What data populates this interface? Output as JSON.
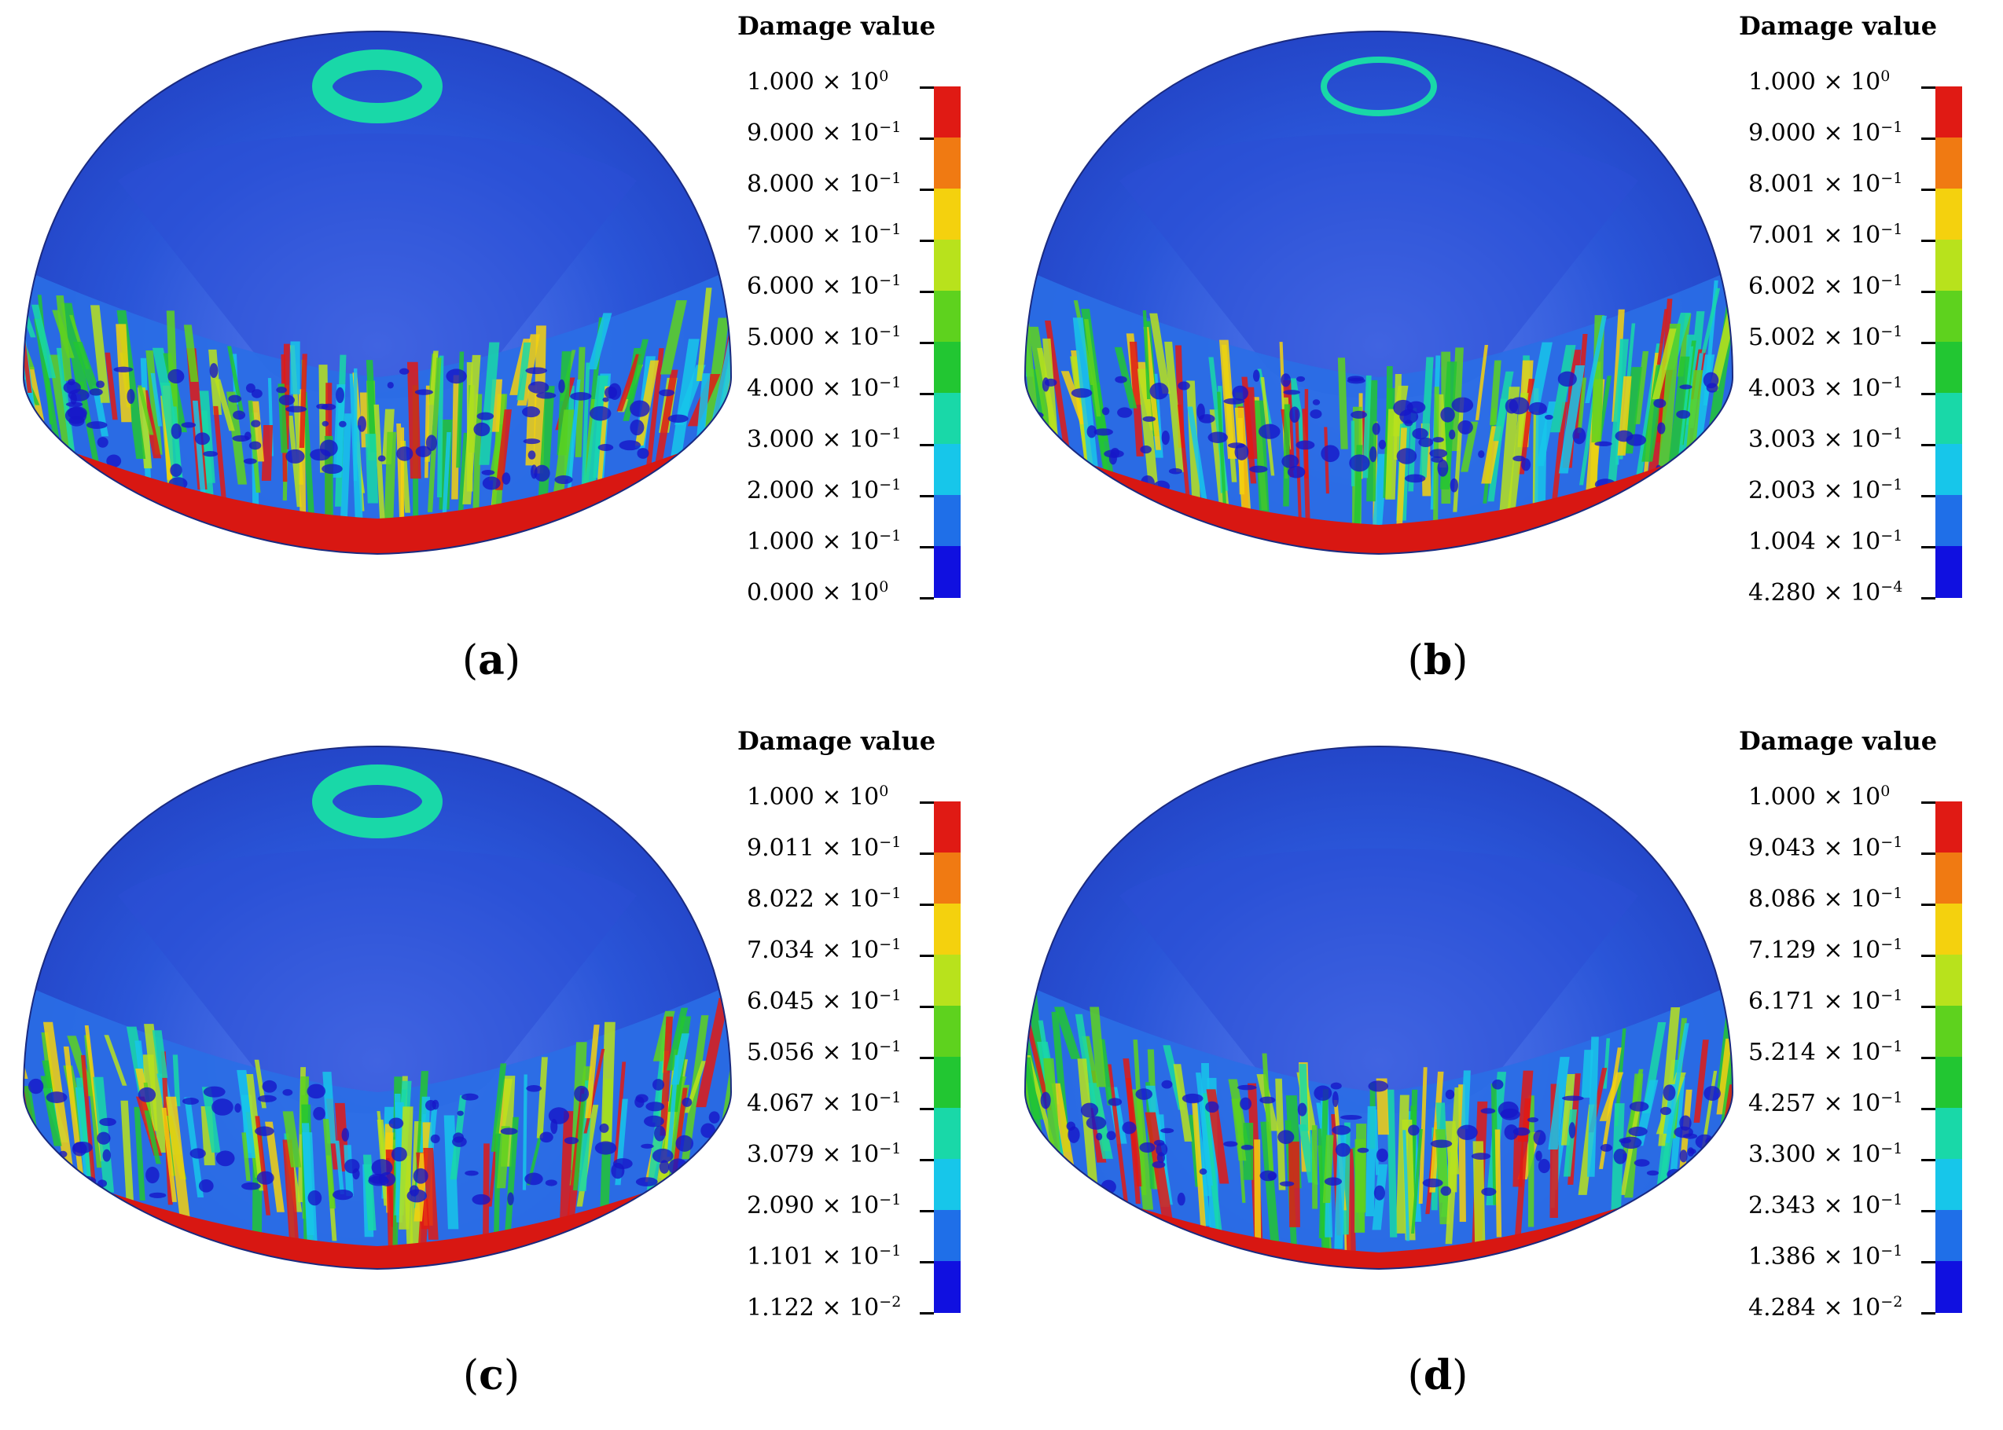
{
  "colors": {
    "scale": [
      "#1010e0",
      "#1f6fe8",
      "#17c6ea",
      "#19d8a8",
      "#22c632",
      "#5ed21e",
      "#b8e21c",
      "#f4d10e",
      "#f07a12",
      "#e01a14"
    ],
    "dome_top": "#1a2fb0",
    "dome_mid": "#2a55d8",
    "dome_band_red": "#d81712",
    "dome_band_green": "#3fc23a"
  },
  "panels": [
    {
      "caption": "a",
      "legend_title": "Damage value",
      "labels": [
        {
          "m": "1.000",
          "e": "0"
        },
        {
          "m": "9.000",
          "e": "−1"
        },
        {
          "m": "8.000",
          "e": "−1"
        },
        {
          "m": "7.000",
          "e": "−1"
        },
        {
          "m": "6.000",
          "e": "−1"
        },
        {
          "m": "5.000",
          "e": "−1"
        },
        {
          "m": "4.000",
          "e": "−1"
        },
        {
          "m": "3.000",
          "e": "−1"
        },
        {
          "m": "2.000",
          "e": "−1"
        },
        {
          "m": "1.000",
          "e": "−1"
        },
        {
          "m": "0.000",
          "e": "0"
        }
      ],
      "ring": true
    },
    {
      "caption": "b",
      "legend_title": "Damage value",
      "labels": [
        {
          "m": "1.000",
          "e": "0"
        },
        {
          "m": "9.000",
          "e": "−1"
        },
        {
          "m": "8.001",
          "e": "−1"
        },
        {
          "m": "7.001",
          "e": "−1"
        },
        {
          "m": "6.002",
          "e": "−1"
        },
        {
          "m": "5.002",
          "e": "−1"
        },
        {
          "m": "4.003",
          "e": "−1"
        },
        {
          "m": "3.003",
          "e": "−1"
        },
        {
          "m": "2.003",
          "e": "−1"
        },
        {
          "m": "1.004",
          "e": "−1"
        },
        {
          "m": "4.280",
          "e": "−4"
        }
      ],
      "ring": true
    },
    {
      "caption": "c",
      "legend_title": "Damage value",
      "labels": [
        {
          "m": "1.000",
          "e": "0"
        },
        {
          "m": "9.011",
          "e": "−1"
        },
        {
          "m": "8.022",
          "e": "−1"
        },
        {
          "m": "7.034",
          "e": "−1"
        },
        {
          "m": "6.045",
          "e": "−1"
        },
        {
          "m": "5.056",
          "e": "−1"
        },
        {
          "m": "4.067",
          "e": "−1"
        },
        {
          "m": "3.079",
          "e": "−1"
        },
        {
          "m": "2.090",
          "e": "−1"
        },
        {
          "m": "1.101",
          "e": "−1"
        },
        {
          "m": "1.122",
          "e": "−2"
        }
      ],
      "ring": true
    },
    {
      "caption": "d",
      "legend_title": "Damage value",
      "labels": [
        {
          "m": "1.000",
          "e": "0"
        },
        {
          "m": "9.043",
          "e": "−1"
        },
        {
          "m": "8.086",
          "e": "−1"
        },
        {
          "m": "7.129",
          "e": "−1"
        },
        {
          "m": "6.171",
          "e": "−1"
        },
        {
          "m": "5.214",
          "e": "−1"
        },
        {
          "m": "4.257",
          "e": "−1"
        },
        {
          "m": "3.300",
          "e": "−1"
        },
        {
          "m": "2.343",
          "e": "−1"
        },
        {
          "m": "1.386",
          "e": "−1"
        },
        {
          "m": "4.284",
          "e": "−2"
        }
      ],
      "ring": false
    }
  ]
}
